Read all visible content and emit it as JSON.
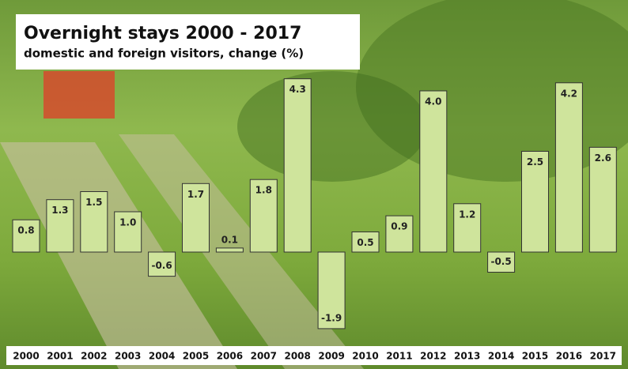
{
  "chart_data": {
    "type": "bar",
    "title": "Overnight stays 2000 - 2017",
    "subtitle": "domestic and foreign visitors, change (%)",
    "categories": [
      "2000",
      "2001",
      "2002",
      "2003",
      "2004",
      "2005",
      "2006",
      "2007",
      "2008",
      "2009",
      "2010",
      "2011",
      "2012",
      "2013",
      "2014",
      "2015",
      "2016",
      "2017"
    ],
    "values": [
      0.8,
      1.3,
      1.5,
      1.0,
      -0.6,
      1.7,
      0.1,
      1.8,
      4.3,
      -1.9,
      0.5,
      0.9,
      4.0,
      1.2,
      -0.5,
      2.5,
      4.2,
      2.6
    ],
    "value_labels": [
      "0.8",
      "1.3",
      "1.5",
      "1.0",
      "-0.6",
      "1.7",
      "0.1",
      "1.8",
      "4.3",
      "-1.9",
      "0.5",
      "0.9",
      "4.0",
      "1.2",
      "-0.5",
      "2.5",
      "4.2",
      "2.6"
    ],
    "color": "#cfe49c"
  }
}
